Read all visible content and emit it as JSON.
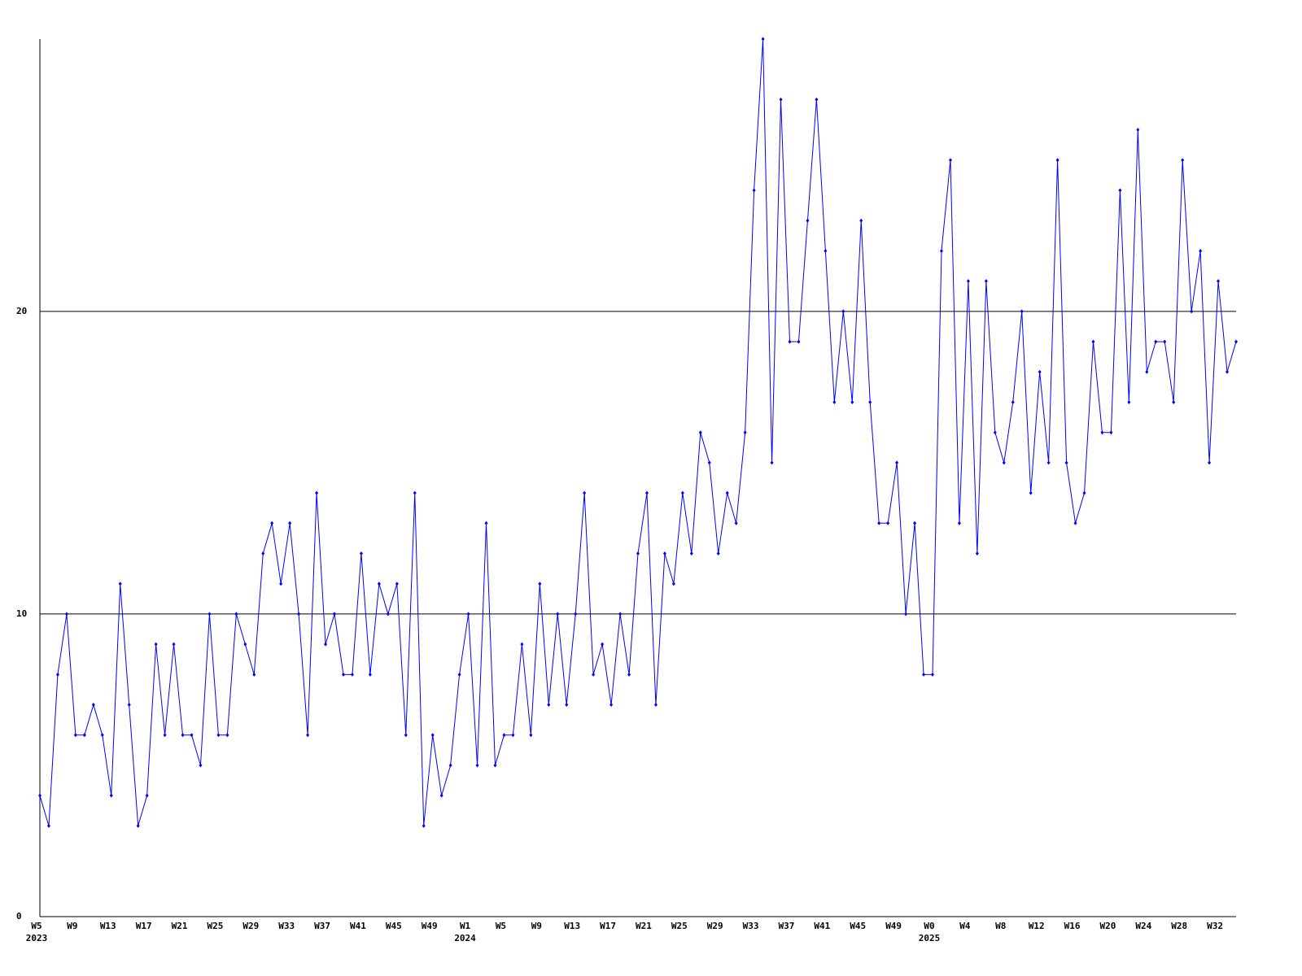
{
  "chart_data": {
    "type": "line",
    "categories": [
      "W5",
      null,
      null,
      null,
      "W9",
      null,
      null,
      null,
      "W13",
      null,
      null,
      null,
      "W17",
      null,
      null,
      null,
      "W21",
      null,
      null,
      null,
      "W25",
      null,
      null,
      null,
      "W29",
      null,
      null,
      null,
      "W33",
      null,
      null,
      null,
      "W37",
      null,
      null,
      null,
      "W41",
      null,
      null,
      null,
      "W45",
      null,
      null,
      null,
      "W49",
      null,
      null,
      null,
      "W1",
      null,
      null,
      null,
      "W5",
      null,
      null,
      null,
      "W9",
      null,
      null,
      null,
      "W13",
      null,
      null,
      null,
      "W17",
      null,
      null,
      null,
      "W21",
      null,
      null,
      null,
      "W25",
      null,
      null,
      null,
      "W29",
      null,
      null,
      null,
      "W33",
      null,
      null,
      null,
      "W37",
      null,
      null,
      null,
      "W41",
      null,
      null,
      null,
      "W45",
      null,
      null,
      null,
      "W49",
      null,
      null,
      null,
      "W0",
      null,
      null,
      null,
      "W4",
      null,
      null,
      null,
      "W8",
      null,
      null,
      null,
      "W12",
      null,
      null,
      null,
      "W16",
      null,
      null,
      null,
      "W20",
      null,
      null,
      null,
      "W24",
      null,
      null,
      null,
      "W28",
      null,
      null,
      null,
      "W32",
      null,
      null
    ],
    "category_years": [
      "2023",
      null,
      null,
      null,
      null,
      null,
      null,
      null,
      null,
      null,
      null,
      null,
      null,
      null,
      null,
      null,
      null,
      null,
      null,
      null,
      null,
      null,
      null,
      null,
      null,
      null,
      null,
      null,
      null,
      null,
      null,
      null,
      null,
      null,
      null,
      null,
      null,
      null,
      null,
      null,
      null,
      null,
      null,
      null,
      null,
      null,
      null,
      null,
      "2024",
      null,
      null,
      null,
      null,
      null,
      null,
      null,
      null,
      null,
      null,
      null,
      null,
      null,
      null,
      null,
      null,
      null,
      null,
      null,
      null,
      null,
      null,
      null,
      null,
      null,
      null,
      null,
      null,
      null,
      null,
      null,
      null,
      null,
      null,
      null,
      null,
      null,
      null,
      null,
      null,
      null,
      null,
      null,
      null,
      null,
      null,
      null,
      null,
      null,
      null,
      null,
      "2025",
      null,
      null,
      null,
      null,
      null,
      null,
      null,
      null,
      null,
      null,
      null,
      null,
      null,
      null,
      null,
      null,
      null,
      null,
      null,
      null,
      null,
      null,
      null,
      null,
      null,
      null,
      null,
      null,
      null,
      null,
      null,
      null,
      null,
      null
    ],
    "series": [
      {
        "color": "#0000ff",
        "values": [
          4,
          3,
          8,
          10,
          6,
          6,
          7,
          6,
          4,
          11,
          7,
          3,
          4,
          9,
          6,
          9,
          6,
          6,
          5,
          10,
          6,
          6,
          10,
          9,
          8,
          12,
          13,
          11,
          13,
          10,
          6,
          14,
          9,
          10,
          8,
          8,
          12,
          8,
          11,
          10,
          11,
          6,
          14,
          3,
          6,
          4,
          5,
          8,
          10,
          5,
          13,
          5,
          6,
          6,
          9,
          6,
          11,
          7,
          10,
          7,
          10,
          14,
          8,
          9,
          7,
          10,
          8,
          12,
          14,
          7,
          12,
          11,
          14,
          12,
          16,
          15,
          12,
          14,
          13,
          16,
          24,
          29,
          15,
          27,
          19,
          19,
          23,
          27,
          22,
          17,
          20,
          17,
          23,
          17,
          13,
          13,
          15,
          10,
          13,
          8,
          8,
          22,
          25,
          13,
          21,
          12,
          21,
          16,
          15,
          17,
          20,
          14,
          18,
          15,
          25,
          15,
          13,
          14,
          19,
          16,
          16,
          24,
          17,
          26,
          18,
          19,
          19,
          17,
          25,
          20,
          22,
          15,
          21,
          18,
          19
        ]
      }
    ],
    "ylim": [
      0,
      29
    ],
    "yticks": [
      0,
      10,
      20
    ],
    "grid": true
  }
}
